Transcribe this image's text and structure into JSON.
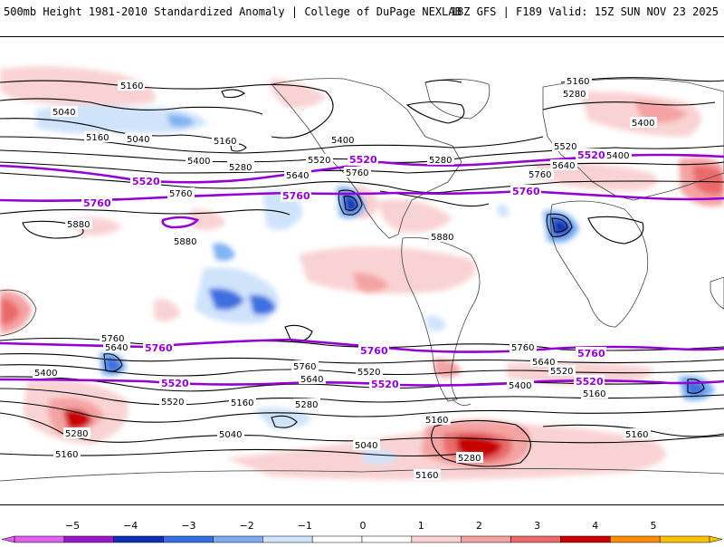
{
  "header": {
    "left_title": "500mb Height 1981-2010 Standardized Anomaly | College of DuPage NEXLAB",
    "right_title": "18Z GFS | F189 Valid: 15Z SUN NOV 23 2025"
  },
  "colors": {
    "pos1": "#f9d3d3",
    "pos2": "#f4a3a3",
    "pos3": "#ea6a6a",
    "pos4": "#c80000",
    "neg1": "#cfe3fb",
    "neg2": "#7fb3f2",
    "neg3": "#3c70e0",
    "neg4": "#0a2fb0",
    "highlight": "#9400d3",
    "contour": "#000000",
    "coast": "#444444"
  },
  "contour_labels": [
    {
      "text": "5160"
    },
    {
      "text": "5040"
    },
    {
      "text": "5160"
    },
    {
      "text": "5040"
    },
    {
      "text": "5160"
    },
    {
      "text": "5280"
    },
    {
      "text": "5400"
    },
    {
      "text": "5520"
    },
    {
      "text": "5400"
    },
    {
      "text": "5640"
    },
    {
      "text": "5760"
    },
    {
      "text": "5760"
    },
    {
      "text": "5880"
    },
    {
      "text": "5880"
    },
    {
      "text": "5880"
    },
    {
      "text": "5160"
    },
    {
      "text": "5280"
    },
    {
      "text": "5400"
    },
    {
      "text": "5520"
    },
    {
      "text": "5400"
    },
    {
      "text": "5280"
    },
    {
      "text": "5640"
    },
    {
      "text": "5760"
    },
    {
      "text": "5760"
    },
    {
      "text": "5640"
    },
    {
      "text": "5400"
    },
    {
      "text": "5520"
    },
    {
      "text": "5520"
    },
    {
      "text": "5160"
    },
    {
      "text": "5280"
    },
    {
      "text": "5040"
    },
    {
      "text": "5160"
    },
    {
      "text": "5040"
    },
    {
      "text": "5280"
    },
    {
      "text": "5160"
    },
    {
      "text": "5760"
    },
    {
      "text": "5640"
    },
    {
      "text": "5520"
    },
    {
      "text": "5400"
    },
    {
      "text": "5160"
    },
    {
      "text": "5160"
    },
    {
      "text": "5280"
    },
    {
      "text": "5160"
    },
    {
      "text": "5640"
    },
    {
      "text": "5760"
    }
  ],
  "highlight_labels": [
    {
      "text": "5520"
    },
    {
      "text": "5760"
    },
    {
      "text": "5760"
    },
    {
      "text": "5520"
    },
    {
      "text": "5520"
    },
    {
      "text": "5760"
    },
    {
      "text": "5760"
    },
    {
      "text": "5760"
    },
    {
      "text": "5760"
    },
    {
      "text": "5520"
    },
    {
      "text": "5520"
    },
    {
      "text": "5520"
    }
  ],
  "colorbar": {
    "ticks": [
      {
        "label": "−5"
      },
      {
        "label": "−4"
      },
      {
        "label": "−3"
      },
      {
        "label": "−2"
      },
      {
        "label": "−1"
      },
      {
        "label": "0"
      },
      {
        "label": "1"
      },
      {
        "label": "2"
      },
      {
        "label": "3"
      },
      {
        "label": "4"
      },
      {
        "label": "5"
      }
    ],
    "segments": [
      {
        "color": "#e060f0"
      },
      {
        "color": "#9a18c8"
      },
      {
        "color": "#1030b8"
      },
      {
        "color": "#3570e0"
      },
      {
        "color": "#7faaf0"
      },
      {
        "color": "#cfe3fb"
      },
      {
        "color": "#ffffff"
      },
      {
        "color": "#ffffff"
      },
      {
        "color": "#f9d3d3"
      },
      {
        "color": "#f4a3a3"
      },
      {
        "color": "#ea6a6a"
      },
      {
        "color": "#c80000"
      },
      {
        "color": "#ff8c00"
      },
      {
        "color": "#ffc000"
      }
    ]
  }
}
